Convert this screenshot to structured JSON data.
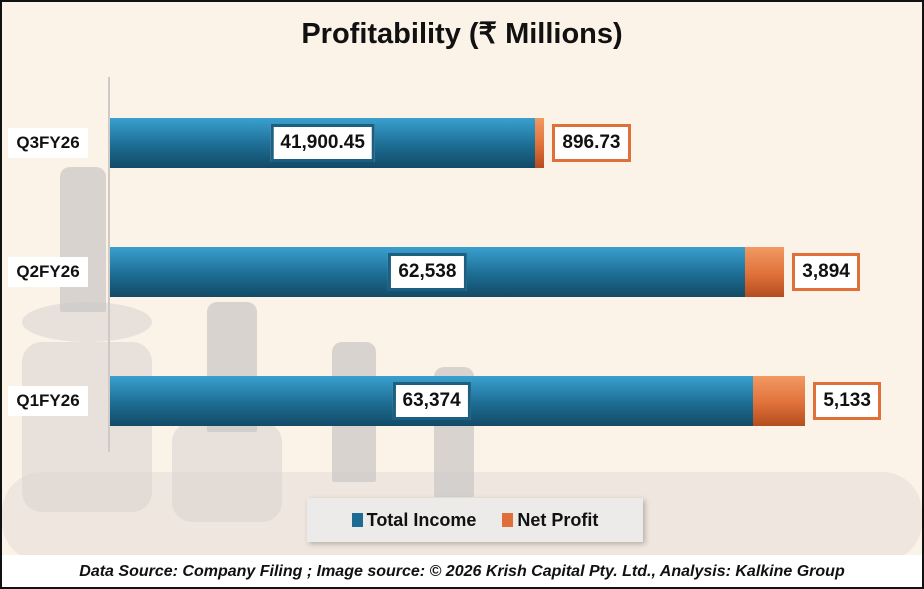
{
  "chart_data": {
    "type": "bar",
    "orientation": "horizontal",
    "stacked": true,
    "title": "Profitability (₹ Millions)",
    "categories": [
      "Q3FY26",
      "Q2FY26",
      "Q1FY26"
    ],
    "series": [
      {
        "name": "Total Income",
        "values": [
          41900.45,
          62538,
          63374
        ],
        "labels": [
          "41,900.45",
          "62,538",
          "63,374"
        ],
        "color": "#1d6d93"
      },
      {
        "name": "Net Profit",
        "values": [
          896.73,
          3894,
          5133
        ],
        "labels": [
          "896.73",
          "3,894",
          "5,133"
        ],
        "color": "#e0703a"
      }
    ],
    "xlim": [
      0,
      80000
    ],
    "grid": false,
    "legend": "bottom"
  },
  "footer": "Data Source: Company Filing ; Image source: © 2026 Krish Capital Pty. Ltd., Analysis: Kalkine Group"
}
